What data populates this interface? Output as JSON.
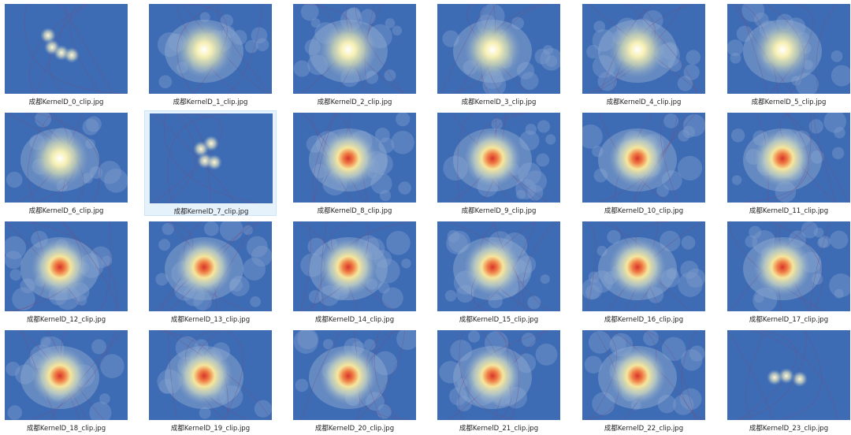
{
  "files": [
    {
      "name": "成都KernelD_0_clip.jpg"
    },
    {
      "name": "成都KernelD_1_clip.jpg"
    },
    {
      "name": "成都KernelD_2_clip.jpg"
    },
    {
      "name": "成都KernelD_3_clip.jpg"
    },
    {
      "name": "成都KernelD_4_clip.jpg"
    },
    {
      "name": "成都KernelD_5_clip.jpg"
    },
    {
      "name": "成都KernelD_6_clip.jpg"
    },
    {
      "name": "成都KernelD_7_clip.jpg"
    },
    {
      "name": "成都KernelD_8_clip.jpg"
    },
    {
      "name": "成都KernelD_9_clip.jpg"
    },
    {
      "name": "成都KernelD_10_clip.jpg"
    },
    {
      "name": "成都KernelD_11_clip.jpg"
    },
    {
      "name": "成都KernelD_12_clip.jpg"
    },
    {
      "name": "成都KernelD_13_clip.jpg"
    },
    {
      "name": "成都KernelD_14_clip.jpg"
    },
    {
      "name": "成都KernelD_15_clip.jpg"
    },
    {
      "name": "成都KernelD_16_clip.jpg"
    },
    {
      "name": "成都KernelD_17_clip.jpg"
    },
    {
      "name": "成都KernelD_18_clip.jpg"
    },
    {
      "name": "成都KernelD_19_clip.jpg"
    },
    {
      "name": "成都KernelD_20_clip.jpg"
    },
    {
      "name": "成都KernelD_21_clip.jpg"
    },
    {
      "name": "成都KernelD_22_clip.jpg"
    },
    {
      "name": "成都KernelD_23_clip.jpg"
    }
  ]
}
